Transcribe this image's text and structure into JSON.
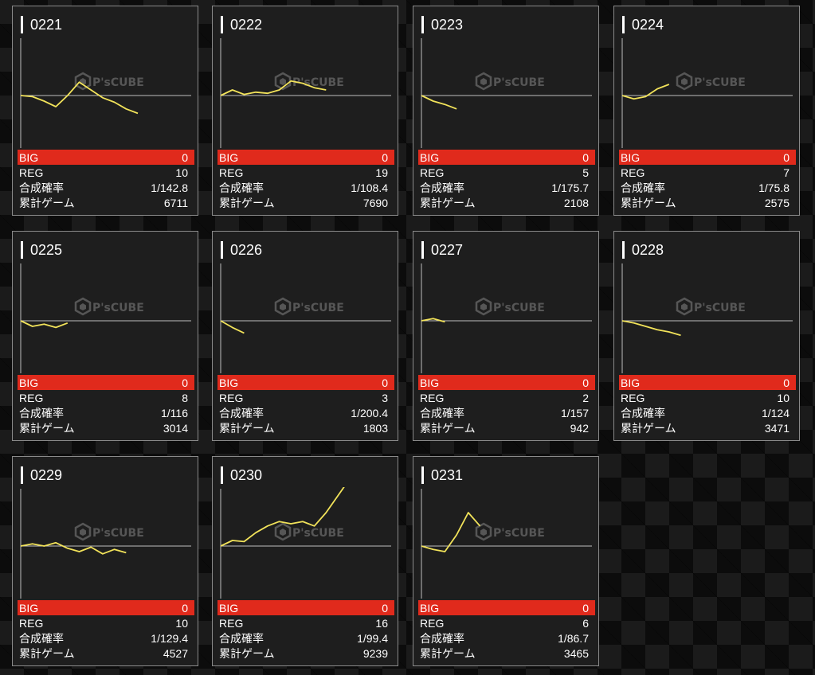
{
  "labels": {
    "big": "BIG",
    "reg": "REG",
    "prob": "合成確率",
    "games": "累計ゲーム"
  },
  "watermark": {
    "text": "P'sCUBE",
    "icon": "cube-icon"
  },
  "colors": {
    "line": "#f2e35a",
    "big_bar": "#e02a1c",
    "axis": "#bfbfbf",
    "card_bg": "#1e1e1e"
  },
  "machines": [
    {
      "id": "0221",
      "big": "0",
      "reg": "10",
      "prob": "1/142.8",
      "games": "6711"
    },
    {
      "id": "0222",
      "big": "0",
      "reg": "19",
      "prob": "1/108.4",
      "games": "7690"
    },
    {
      "id": "0223",
      "big": "0",
      "reg": "5",
      "prob": "1/175.7",
      "games": "2108"
    },
    {
      "id": "0224",
      "big": "0",
      "reg": "7",
      "prob": "1/75.8",
      "games": "2575"
    },
    {
      "id": "0225",
      "big": "0",
      "reg": "8",
      "prob": "1/116",
      "games": "3014"
    },
    {
      "id": "0226",
      "big": "0",
      "reg": "3",
      "prob": "1/200.4",
      "games": "1803"
    },
    {
      "id": "0227",
      "big": "0",
      "reg": "2",
      "prob": "1/157",
      "games": "942"
    },
    {
      "id": "0228",
      "big": "0",
      "reg": "10",
      "prob": "1/124",
      "games": "3471"
    },
    {
      "id": "0229",
      "big": "0",
      "reg": "10",
      "prob": "1/129.4",
      "games": "4527"
    },
    {
      "id": "0230",
      "big": "0",
      "reg": "16",
      "prob": "1/99.4",
      "games": "9239"
    },
    {
      "id": "0231",
      "big": "0",
      "reg": "6",
      "prob": "1/86.7",
      "games": "3465"
    }
  ],
  "chart_data": {
    "type": "line",
    "charts": [
      {
        "id": "0221",
        "y": [
          0,
          -1,
          -5,
          -10,
          0,
          12,
          5,
          -2,
          -6,
          -12,
          -16
        ]
      },
      {
        "id": "0222",
        "y": [
          0,
          5,
          1,
          3,
          2,
          5,
          13,
          11,
          7,
          5
        ]
      },
      {
        "id": "0223",
        "y": [
          0,
          -5,
          -8,
          -12
        ]
      },
      {
        "id": "0224",
        "y": [
          0,
          -3,
          -1,
          6,
          10
        ]
      },
      {
        "id": "0225",
        "y": [
          0,
          -5,
          -3,
          -6,
          -2
        ]
      },
      {
        "id": "0226",
        "y": [
          0,
          -6,
          -11
        ]
      },
      {
        "id": "0227",
        "y": [
          0,
          2,
          -1
        ]
      },
      {
        "id": "0228",
        "y": [
          0,
          -2,
          -5,
          -8,
          -10,
          -13
        ]
      },
      {
        "id": "0229",
        "y": [
          0,
          2,
          0,
          3,
          -2,
          -5,
          -1,
          -7,
          -3,
          -6
        ]
      },
      {
        "id": "0230",
        "y": [
          0,
          5,
          4,
          12,
          18,
          22,
          20,
          22,
          18,
          30,
          45,
          60
        ]
      },
      {
        "id": "0231",
        "y": [
          0,
          -3,
          -5,
          10,
          30,
          18
        ]
      }
    ]
  }
}
